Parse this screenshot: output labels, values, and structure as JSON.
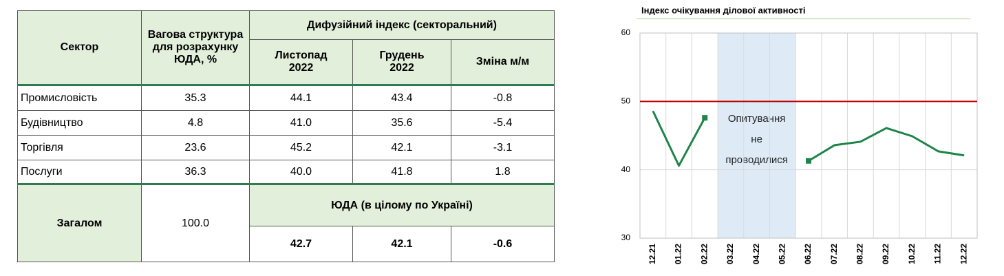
{
  "table": {
    "header": {
      "sector": "Сектор",
      "weight": "Вагова структура для розрахунку ЮДА, %",
      "diffusion": "Дифузійний індекс (секторальний)",
      "months": [
        "Листопад 2022",
        "Грудень 2022",
        "Зміна м/м"
      ]
    },
    "rows": [
      [
        "Промисловість",
        "35.3",
        "44.1",
        "43.4",
        "-0.8"
      ],
      [
        "Будівництво",
        "4.8",
        "41.0",
        "35.6",
        "-5.4"
      ],
      [
        "Торгівля",
        "23.6",
        "45.2",
        "42.1",
        "-3.1"
      ],
      [
        "Послуги",
        "36.3",
        "40.0",
        "41.8",
        "1.8"
      ]
    ],
    "total": {
      "label": "Загалом",
      "weight": "100.0",
      "subheader": "ЮДА (в цілому по Україні)",
      "values": [
        "42.7",
        "42.1",
        "-0.6"
      ]
    }
  },
  "chart_data": {
    "type": "line",
    "title": "Індекс очікування ділової активності",
    "categories": [
      "12.21",
      "01.22",
      "02.22",
      "03.22",
      "04.22",
      "05.22",
      "06.22",
      "07.22",
      "08.22",
      "09.22",
      "10.22",
      "11.22",
      "12.22"
    ],
    "series": [
      {
        "name": "ЮДА",
        "color": "#1e8449",
        "values": [
          48.6,
          40.6,
          47.6,
          null,
          null,
          null,
          41.3,
          43.6,
          44.1,
          46.1,
          44.9,
          42.7,
          42.1
        ]
      }
    ],
    "ylim": [
      30,
      60
    ],
    "yticks": [
      30,
      40,
      50,
      60
    ],
    "grid": true,
    "reference_line": {
      "value": 50,
      "color": "#c00000"
    },
    "annotation": [
      "Опитування",
      "не",
      "проводилися"
    ]
  }
}
